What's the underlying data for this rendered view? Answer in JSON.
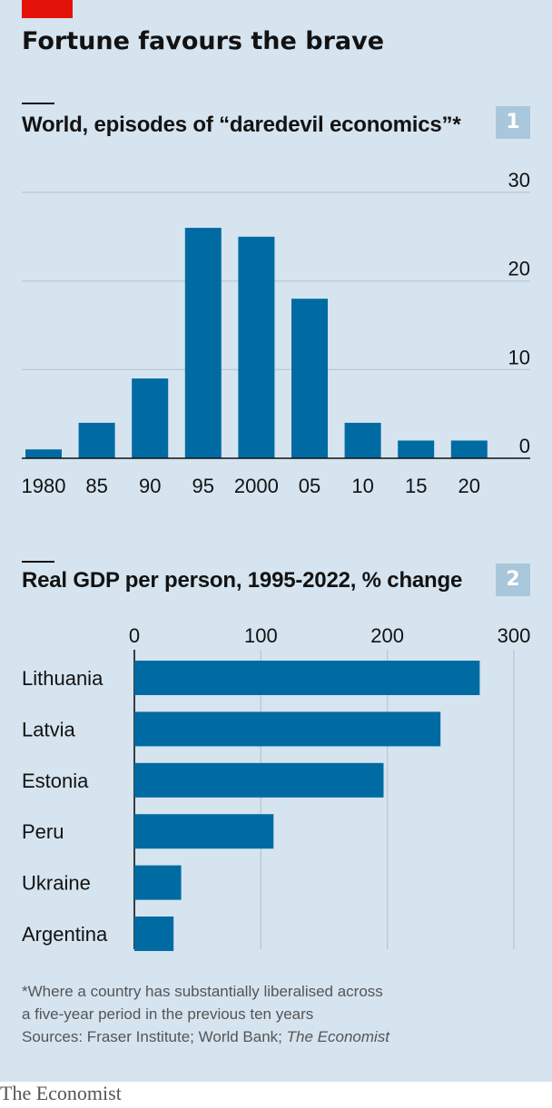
{
  "title": "Fortune favours the brave",
  "colors": {
    "bar": "#006ba2",
    "accent_red": "#e3120b",
    "background": "#d5e4ef",
    "gridline": "#b7c6cf"
  },
  "chart_data": [
    {
      "type": "bar",
      "index_label": "1",
      "title": "World, episodes of “daredevil economics”*",
      "categories": [
        "1980",
        "85",
        "90",
        "95",
        "2000",
        "05",
        "10",
        "15",
        "20"
      ],
      "values": [
        1,
        4,
        9,
        26,
        25,
        18,
        4,
        2,
        2
      ],
      "ylim": [
        0,
        30
      ],
      "yticks": [
        "0",
        "10",
        "20",
        "30"
      ],
      "ytick_values": [
        0,
        10,
        20,
        30
      ],
      "yaxis_position": "right",
      "grid": true
    },
    {
      "type": "bar",
      "orientation": "horizontal",
      "index_label": "2",
      "title": "Real GDP per person, 1995-2022, % change",
      "categories": [
        "Lithuania",
        "Latvia",
        "Estonia",
        "Peru",
        "Ukraine",
        "Argentina"
      ],
      "values": [
        273,
        242,
        197,
        110,
        37,
        31
      ],
      "xlim": [
        0,
        300
      ],
      "xticks": [
        "0",
        "100",
        "200",
        "300"
      ],
      "xtick_values": [
        0,
        100,
        200,
        300
      ],
      "xaxis_position": "top",
      "grid": true
    }
  ],
  "footnote": {
    "line1": "*Where a country has substantially liberalised across",
    "line2": "a five-year period in the previous ten years",
    "sources_prefix": "Sources: Fraser Institute; World Bank; ",
    "sources_publication": "The Economist"
  },
  "brand": "The Economist"
}
